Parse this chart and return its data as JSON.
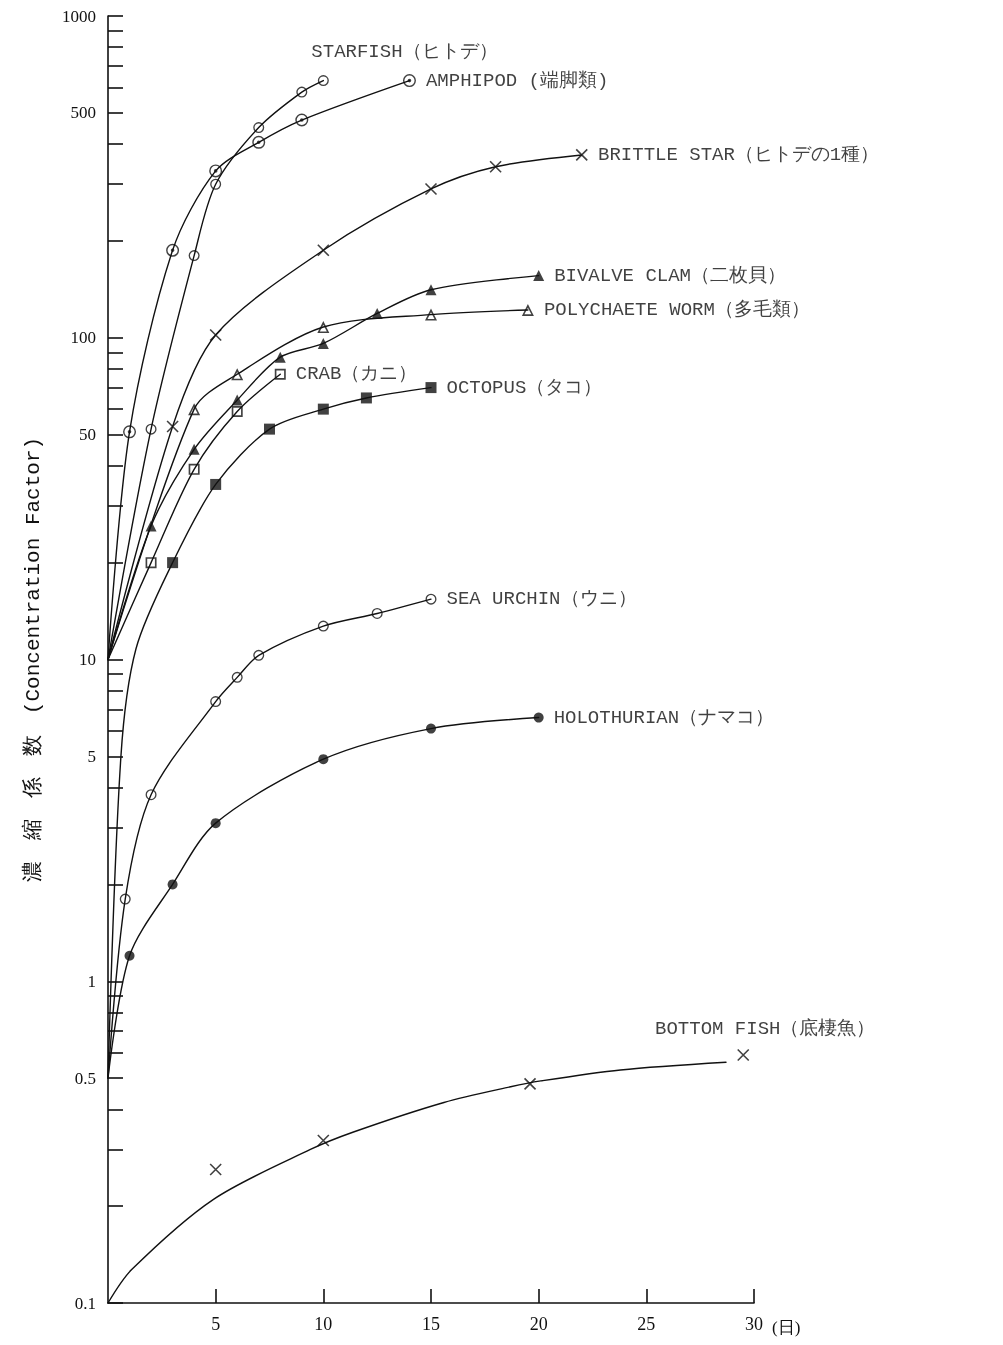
{
  "chart_data": {
    "type": "scatter",
    "log": "y",
    "legend": false,
    "grid": false,
    "xlabel": "(日)",
    "ylabel": "濃　縮　係　数　(Concentration Factor)",
    "xlim": [
      0,
      30
    ],
    "xticks": [
      5,
      10,
      15,
      20,
      25,
      30
    ],
    "ylim": [
      0.1,
      1000
    ],
    "yticks": [
      0.1,
      {
        "value": 0.2,
        "label": null
      },
      {
        "value": 0.3,
        "label": null
      },
      {
        "value": 0.4,
        "label": null
      },
      0.5,
      {
        "value": 0.6,
        "label": null
      },
      {
        "value": 0.7,
        "label": null
      },
      {
        "value": 0.8,
        "label": null
      },
      {
        "value": 0.9,
        "label": null
      },
      1,
      {
        "value": 2,
        "label": null
      },
      {
        "value": 3,
        "label": null
      },
      {
        "value": 4,
        "label": null
      },
      5,
      {
        "value": 6,
        "label": null
      },
      {
        "value": 7,
        "label": null
      },
      {
        "value": 8,
        "label": null
      },
      {
        "value": 9,
        "label": null
      },
      10,
      {
        "value": 20,
        "label": null
      },
      {
        "value": 30,
        "label": null
      },
      {
        "value": 40,
        "label": null
      },
      50,
      {
        "value": 60,
        "label": null
      },
      {
        "value": 70,
        "label": null
      },
      {
        "value": 80,
        "label": null
      },
      {
        "value": 90,
        "label": null
      },
      100,
      {
        "value": 200,
        "label": null
      },
      {
        "value": 300,
        "label": null
      },
      {
        "value": 400,
        "label": null
      },
      500,
      {
        "value": 600,
        "label": null
      },
      {
        "value": 700,
        "label": null
      },
      {
        "value": 800,
        "label": null
      },
      {
        "value": 900,
        "label": null
      },
      1000
    ],
    "series": [
      {
        "name": "STARFISH（ヒトデ）",
        "marker": "circle-open",
        "color": "#111111",
        "x": [
          2,
          4,
          5,
          7,
          9,
          10
        ],
        "values": [
          52,
          180,
          300,
          450,
          580,
          630
        ]
      },
      {
        "type": "line",
        "marker": "none",
        "color": "#111111",
        "x": [
          0,
          2,
          4,
          5,
          7,
          9,
          10
        ],
        "values": [
          10,
          52,
          180,
          300,
          450,
          580,
          630
        ]
      },
      {
        "name": "AMPHIPOD (端脚類)",
        "marker": "circle-dot",
        "color": "#111111",
        "x": [
          1,
          3,
          5,
          7,
          9,
          14
        ],
        "values": [
          51,
          187,
          330,
          405,
          475,
          630
        ]
      },
      {
        "type": "line",
        "marker": "none",
        "color": "#111111",
        "x": [
          0,
          1,
          3,
          5,
          7,
          9,
          14
        ],
        "values": [
          10,
          51,
          187,
          330,
          405,
          475,
          630
        ]
      },
      {
        "name": "BRITTLE STAR（ヒトデの1種）",
        "marker": "cross",
        "color": "#111111",
        "x": [
          3,
          5,
          10,
          15,
          18,
          22
        ],
        "values": [
          53,
          102,
          187,
          290,
          340,
          370
        ]
      },
      {
        "type": "line",
        "marker": "none",
        "color": "#111111",
        "x": [
          0,
          3,
          5,
          10,
          15,
          18,
          22
        ],
        "values": [
          10,
          53,
          102,
          187,
          290,
          340,
          370
        ]
      },
      {
        "name": "BIVALVE CLAM（二枚貝）",
        "marker": "triangle",
        "color": "#111111",
        "x": [
          2,
          4,
          6,
          8,
          10,
          12.5,
          15,
          20
        ],
        "values": [
          26,
          45,
          64,
          87,
          96,
          119,
          141,
          156
        ]
      },
      {
        "type": "line",
        "marker": "none",
        "color": "#111111",
        "x": [
          0,
          2,
          4,
          6,
          8,
          10,
          12.5,
          15,
          20
        ],
        "values": [
          10,
          26,
          45,
          64,
          87,
          96,
          119,
          141,
          156
        ]
      },
      {
        "name": "POLYCHAETE WORM（多毛類）",
        "marker": "triangle-open",
        "color": "#111111",
        "x": [
          4,
          6,
          10,
          15,
          19.5
        ],
        "values": [
          60,
          77,
          108,
          118,
          122
        ]
      },
      {
        "type": "line",
        "marker": "none",
        "color": "#111111",
        "x": [
          0,
          4,
          6,
          10,
          15,
          19.5
        ],
        "values": [
          10,
          60,
          77,
          108,
          118,
          122
        ]
      },
      {
        "name": "CRAB（カニ）",
        "marker": "square-open",
        "color": "#111111",
        "x": [
          2,
          4,
          6,
          8
        ],
        "values": [
          20,
          39,
          59,
          77
        ]
      },
      {
        "type": "line",
        "marker": "none",
        "color": "#111111",
        "x": [
          0,
          2,
          4,
          6,
          8
        ],
        "values": [
          10,
          20,
          39,
          59,
          77
        ]
      },
      {
        "name": "OCTOPUS（タコ）",
        "marker": "square",
        "color": "#111111",
        "x": [
          3,
          5,
          7.5,
          10,
          12,
          15
        ],
        "values": [
          20,
          35,
          52,
          60,
          65,
          70
        ]
      },
      {
        "type": "line",
        "marker": "none",
        "color": "#111111",
        "x": [
          0,
          0.6,
          1.3,
          3,
          5,
          7.5,
          10,
          12,
          15
        ],
        "values": [
          0.5,
          5,
          10.8,
          20,
          35,
          52,
          60,
          65,
          70
        ]
      },
      {
        "name": "SEA URCHIN（ウニ）",
        "marker": "circle-open",
        "color": "#111111",
        "x": [
          0.8,
          2,
          5,
          6,
          7,
          10,
          12.5,
          15
        ],
        "values": [
          1.8,
          3.8,
          7.4,
          8.8,
          10.3,
          12.7,
          13.9,
          15.4
        ]
      },
      {
        "type": "line",
        "marker": "none",
        "color": "#111111",
        "x": [
          0,
          0.8,
          2,
          5,
          6,
          7,
          10,
          12.5,
          15
        ],
        "values": [
          0.5,
          1.8,
          3.8,
          7.4,
          8.8,
          10.3,
          12.7,
          13.9,
          15.4
        ]
      },
      {
        "name": "HOLOTHURIAN（ナマコ）",
        "marker": "circle",
        "color": "#111111",
        "x": [
          1,
          3,
          5,
          10,
          15,
          20
        ],
        "values": [
          1.2,
          2.0,
          3.1,
          4.9,
          6.1,
          6.6
        ]
      },
      {
        "type": "line",
        "marker": "none",
        "color": "#111111",
        "x": [
          0,
          1,
          3,
          5,
          10,
          15,
          20
        ],
        "values": [
          0.5,
          1.2,
          2.0,
          3.1,
          4.9,
          6.1,
          6.6
        ]
      },
      {
        "name": "BOTTOM FISH（底棲魚）",
        "marker": "cross",
        "color": "#111111",
        "x": [
          5,
          10,
          19.6,
          29.5
        ],
        "values": [
          0.26,
          0.32,
          0.48,
          0.59
        ]
      },
      {
        "type": "line",
        "marker": "none",
        "color": "#111111",
        "x": [
          0,
          1.1,
          4.9,
          9.4,
          11.4,
          15.6,
          18.7,
          20.1,
          23.8,
          28.7
        ],
        "values": [
          0.1,
          0.127,
          0.21,
          0.3,
          0.34,
          0.42,
          0.47,
          0.49,
          0.53,
          0.56
        ]
      }
    ]
  }
}
